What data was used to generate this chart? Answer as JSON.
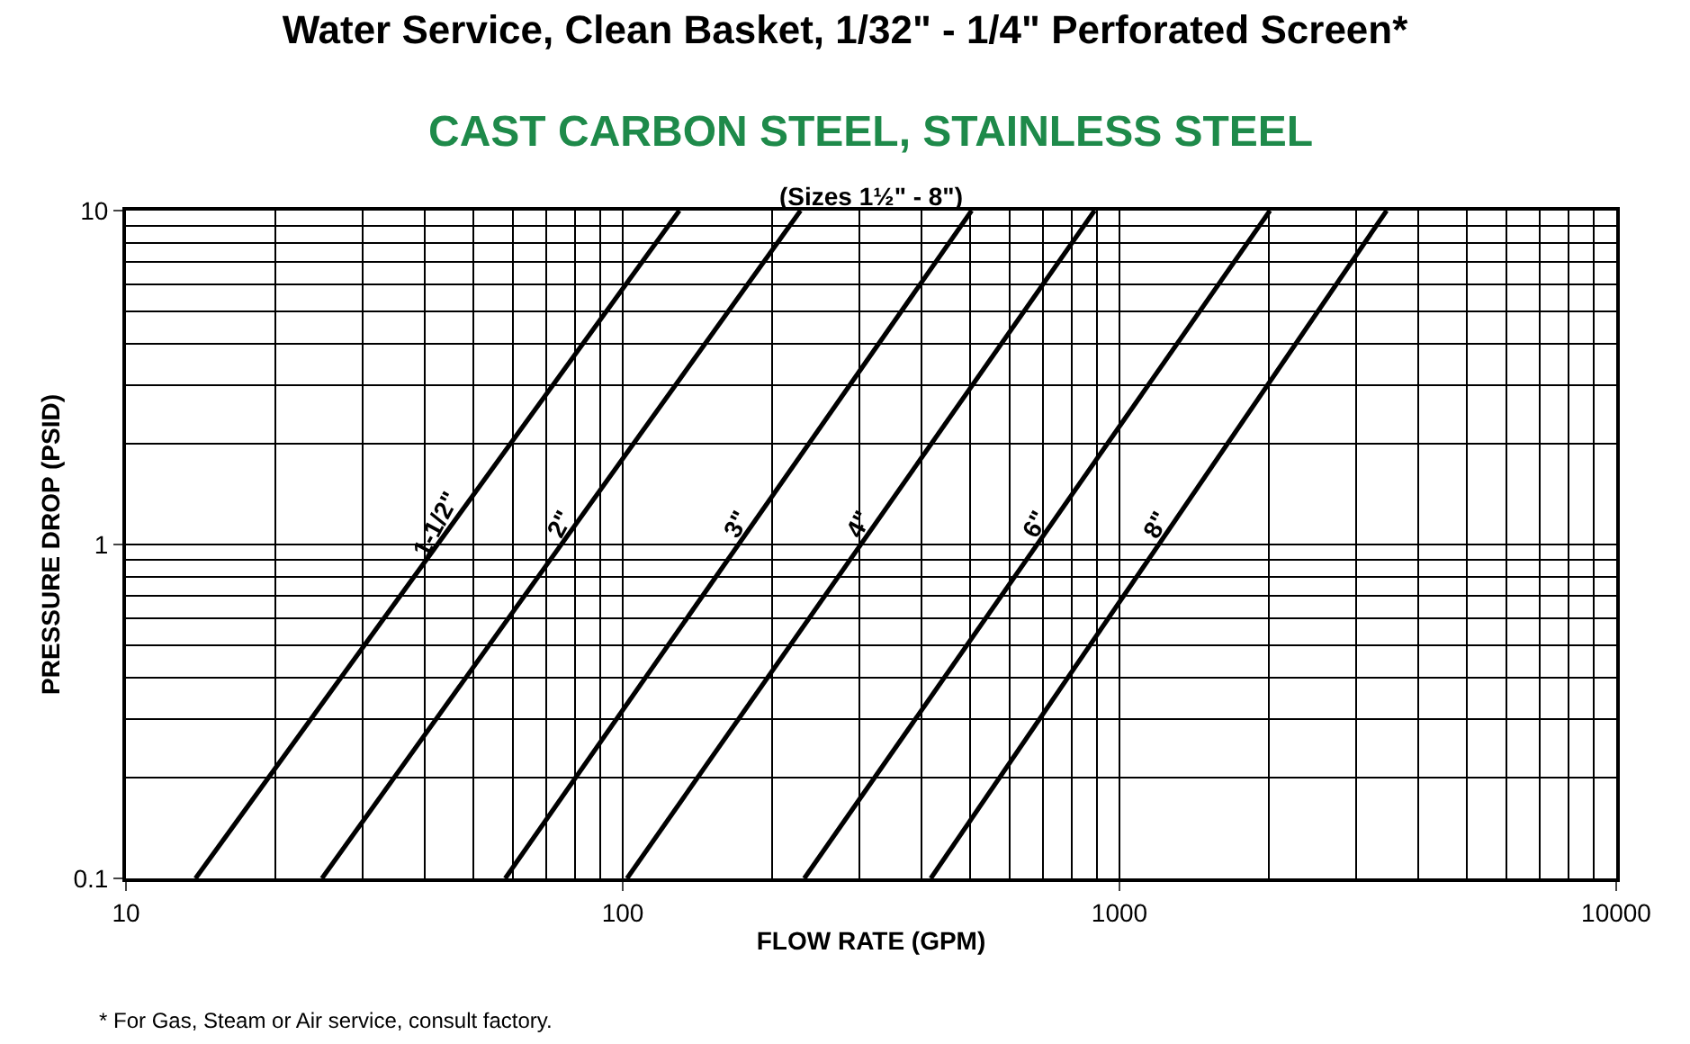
{
  "chart_data": {
    "type": "line",
    "title": "Water Service, Clean Basket, 1/32\" - 1/4\" Perforated Screen*",
    "subtitle": "CAST CARBON STEEL, STAINLESS STEEL",
    "xlabel": "FLOW RATE (GPM)",
    "ylabel": "PRESSURE DROP (PSID)",
    "annotations": [
      "(Sizes 1½\" - 8\")",
      "* For Gas, Steam or Air service, consult factory."
    ],
    "log": "xy",
    "grid": true,
    "legend": false,
    "marker": "none",
    "line_style": "solid",
    "xlim": [
      10,
      10000
    ],
    "xticks": [
      10,
      100,
      1000,
      10000
    ],
    "ylim": [
      0.1,
      10
    ],
    "yticks": [
      0.1,
      1,
      10
    ],
    "series": [
      {
        "name": "1-1/2\"",
        "color": "#000000",
        "x": [
          13.8,
          130
        ],
        "values": [
          0.1,
          10
        ]
      },
      {
        "name": "2\"",
        "color": "#000000",
        "x": [
          24.8,
          228
        ],
        "values": [
          0.1,
          10
        ]
      },
      {
        "name": "3\"",
        "color": "#000000",
        "x": [
          58,
          504
        ],
        "values": [
          0.1,
          10
        ]
      },
      {
        "name": "4\"",
        "color": "#000000",
        "x": [
          102,
          891
        ],
        "values": [
          0.1,
          10
        ]
      },
      {
        "name": "6\"",
        "color": "#000000",
        "x": [
          232,
          2009
        ],
        "values": [
          0.1,
          10
        ]
      },
      {
        "name": "8\"",
        "color": "#000000",
        "x": [
          417,
          3450
        ],
        "values": [
          0.1,
          10
        ]
      }
    ]
  }
}
